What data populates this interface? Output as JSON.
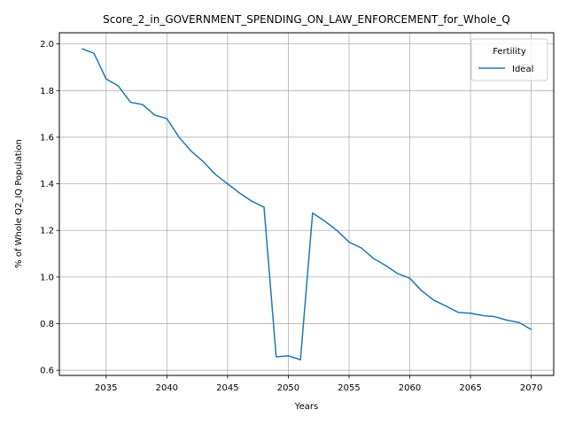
{
  "chart_data": {
    "type": "line",
    "title": "Score_2_in_GOVERNMENT_SPENDING_ON_LAW_ENFORCEMENT_for_Whole_Q",
    "xlabel": "Years",
    "ylabel": "% of Whole Q2_IQ Population",
    "xlim": [
      2031.15,
      2071.85
    ],
    "ylim": [
      0.578,
      2.048
    ],
    "xticks": [
      2035,
      2040,
      2045,
      2050,
      2055,
      2060,
      2065,
      2070
    ],
    "yticks": [
      0.6,
      0.8,
      1.0,
      1.2,
      1.4,
      1.6,
      1.8,
      2.0
    ],
    "grid": true,
    "legend": {
      "title": "Fertility",
      "placement": "top-right"
    },
    "series": [
      {
        "name": "Ideal",
        "color": "#1f77b4",
        "x": [
          2033,
          2034,
          2035,
          2036,
          2037,
          2038,
          2039,
          2040,
          2041,
          2042,
          2043,
          2044,
          2045,
          2046,
          2047,
          2048,
          2049,
          2050,
          2051,
          2052,
          2053,
          2054,
          2055,
          2056,
          2057,
          2058,
          2059,
          2060,
          2061,
          2062,
          2063,
          2064,
          2065,
          2066,
          2067,
          2068,
          2069,
          2070
        ],
        "values": [
          1.98,
          1.96,
          1.85,
          1.82,
          1.75,
          1.74,
          1.695,
          1.68,
          1.6,
          1.54,
          1.495,
          1.44,
          1.4,
          1.36,
          1.325,
          1.3,
          0.658,
          0.662,
          0.645,
          1.275,
          1.24,
          1.2,
          1.15,
          1.125,
          1.08,
          1.05,
          1.015,
          0.995,
          0.94,
          0.9,
          0.875,
          0.848,
          0.845,
          0.835,
          0.83,
          0.815,
          0.805,
          0.775
        ]
      }
    ]
  }
}
